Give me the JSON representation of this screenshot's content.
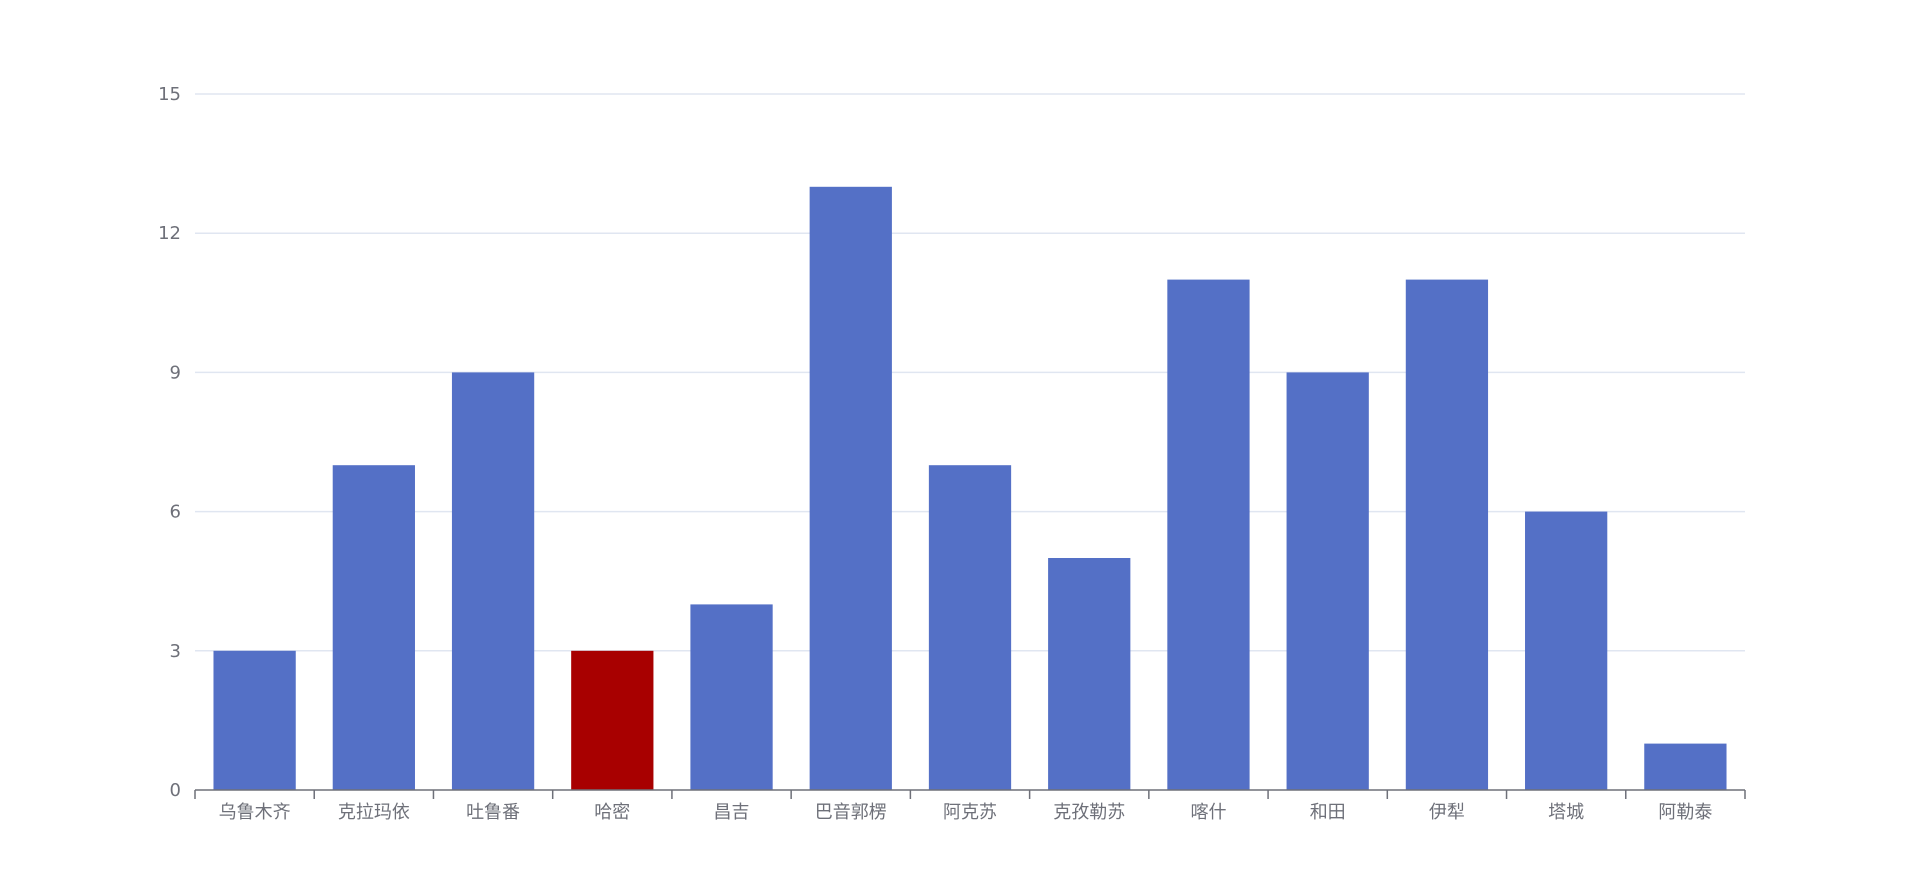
{
  "chart_data": {
    "type": "bar",
    "title": "",
    "xlabel": "",
    "ylabel": "",
    "categories": [
      "乌鲁木齐",
      "克拉玛依",
      "吐鲁番",
      "哈密",
      "昌吉",
      "巴音郭楞",
      "阿克苏",
      "克孜勒苏",
      "喀什",
      "和田",
      "伊犁",
      "塔城",
      "阿勒泰"
    ],
    "values": [
      3,
      7,
      9,
      3,
      4,
      13,
      7,
      5,
      11,
      9,
      11,
      6,
      1
    ],
    "highlight_index": 3,
    "ylim": [
      0,
      15
    ],
    "yticks": [
      0,
      3,
      6,
      9,
      12,
      15
    ],
    "ytick_labels": [
      "0",
      "3",
      "6",
      "9",
      "12",
      "15"
    ],
    "grid": true,
    "legend": "none",
    "colors": {
      "bar": "#5470c6",
      "highlight": "#a80000",
      "grid": "#e0e6f1",
      "axis": "#6e7079"
    }
  }
}
